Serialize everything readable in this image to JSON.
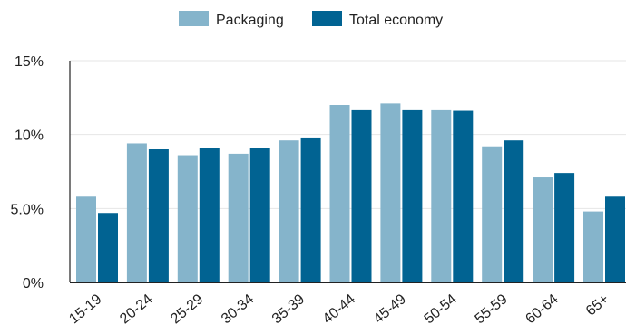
{
  "chart_data": {
    "type": "bar",
    "categories": [
      "15-19",
      "20-24",
      "25-29",
      "30-34",
      "35-39",
      "40-44",
      "45-49",
      "50-54",
      "55-59",
      "60-64",
      "65+"
    ],
    "series": [
      {
        "name": "Packaging",
        "color": "#85b4cb",
        "values": [
          5.8,
          9.4,
          8.6,
          8.7,
          9.6,
          12.0,
          12.1,
          11.7,
          9.2,
          7.1,
          4.8
        ]
      },
      {
        "name": "Total economy",
        "color": "#016392",
        "values": [
          4.7,
          9.0,
          9.1,
          9.1,
          9.8,
          11.7,
          11.7,
          11.6,
          9.6,
          7.4,
          5.8
        ]
      }
    ],
    "y_ticks": [
      {
        "value": 0,
        "label": "0%"
      },
      {
        "value": 5,
        "label": "5.0%"
      },
      {
        "value": 10,
        "label": "10%"
      },
      {
        "value": 15,
        "label": "15%"
      }
    ],
    "ylim": [
      0,
      15
    ],
    "grid": true,
    "legend": "top-center",
    "title": "",
    "xlabel": "",
    "ylabel": ""
  }
}
